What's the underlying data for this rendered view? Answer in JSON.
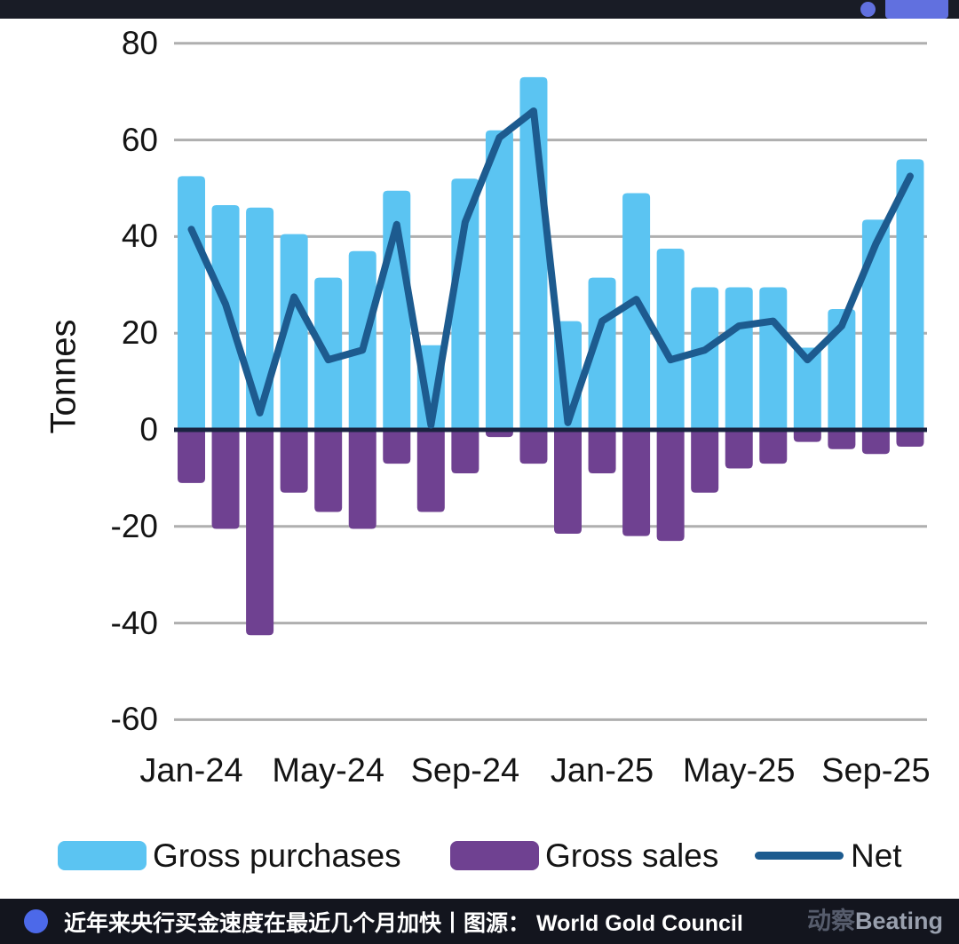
{
  "top_bar": {
    "bg": "#191C26",
    "dot_color": "#6170DF",
    "pill_color": "#6170DF"
  },
  "chart_data": {
    "type": "bar+line",
    "ylabel": "Tonnes",
    "ylim": [
      -60,
      80
    ],
    "yticks": [
      80,
      60,
      40,
      20,
      0,
      -20,
      -40,
      -60
    ],
    "grid": true,
    "grid_color": "#AFAFAF",
    "zero_line_color": "#1A2340",
    "legend_position": "bottom",
    "categories": [
      "Jan-24",
      "Feb-24",
      "Mar-24",
      "Apr-24",
      "May-24",
      "Jun-24",
      "Jul-24",
      "Aug-24",
      "Sep-24",
      "Oct-24",
      "Nov-24",
      "Dec-24",
      "Jan-25",
      "Feb-25",
      "Mar-25",
      "Apr-25",
      "May-25",
      "Jun-25",
      "Jul-25",
      "Aug-25",
      "Sep-25",
      "Oct-25"
    ],
    "x_tick_labels": [
      "Jan-24",
      "May-24",
      "Sep-24",
      "Jan-25",
      "May-25",
      "Sep-25"
    ],
    "x_tick_indices": [
      0,
      4,
      8,
      12,
      16,
      20
    ],
    "series": [
      {
        "name": "Gross purchases",
        "type": "bar",
        "color": "#5BC4F2",
        "values": [
          52.5,
          46.5,
          46,
          40.5,
          31.5,
          37,
          49.5,
          17.5,
          52,
          62,
          73,
          22.5,
          31.5,
          49,
          37.5,
          29.5,
          29.5,
          29.5,
          17,
          25,
          43.5,
          56
        ]
      },
      {
        "name": "Gross sales",
        "type": "bar",
        "color": "#6F4191",
        "values": [
          -11,
          -20.5,
          -42.5,
          -13,
          -17,
          -20.5,
          -7,
          -17,
          -9,
          -1.5,
          -7,
          -21.5,
          -9,
          -22,
          -23,
          -13,
          -8,
          -7,
          -2.5,
          -4,
          -5,
          -3.5
        ]
      },
      {
        "name": "Net",
        "type": "line",
        "color": "#1D5B8F",
        "values": [
          41.5,
          26,
          3.5,
          27.5,
          14.5,
          16.5,
          42.5,
          1,
          43,
          60.5,
          66,
          1.5,
          22.5,
          27,
          14.5,
          16.5,
          21.5,
          22.5,
          14.5,
          21.5,
          38.5,
          52.5
        ]
      }
    ]
  },
  "legend": {
    "purchases": "Gross purchases",
    "sales": "Gross sales",
    "net": "Net"
  },
  "caption": {
    "bg": "#13151E",
    "bullet_color": "#4C69E9",
    "text": "近年来央行买金速度在最近几个月加快丨图源： World Gold Council",
    "logo_cn": "动察",
    "logo_en": "Beating"
  }
}
